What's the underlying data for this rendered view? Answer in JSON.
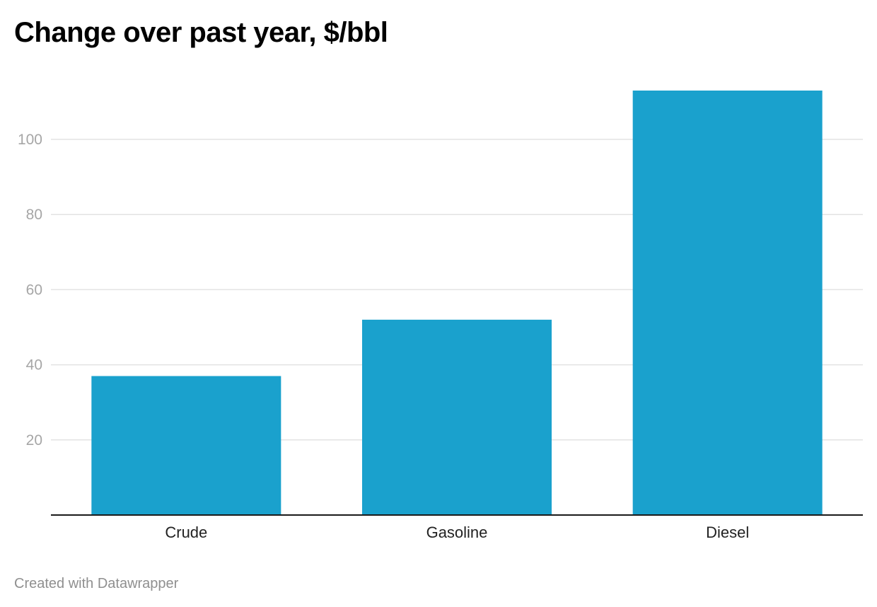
{
  "title": "Change over past year, $/bbl",
  "credit": "Created with Datawrapper",
  "colors": {
    "bar": "#1aa1cd",
    "grid": "#e3e3e3",
    "axis": "#1a1a1a",
    "tick_text": "#a6a6a6",
    "label_text": "#222222"
  },
  "chart_data": {
    "type": "bar",
    "title": "Change over past year, $/bbl",
    "categories": [
      "Crude",
      "Gasoline",
      "Diesel"
    ],
    "values": [
      37,
      52,
      113
    ],
    "ylim": [
      0,
      113
    ],
    "yticks": [
      20,
      40,
      60,
      80,
      100
    ],
    "grid": true,
    "legend": "none"
  }
}
